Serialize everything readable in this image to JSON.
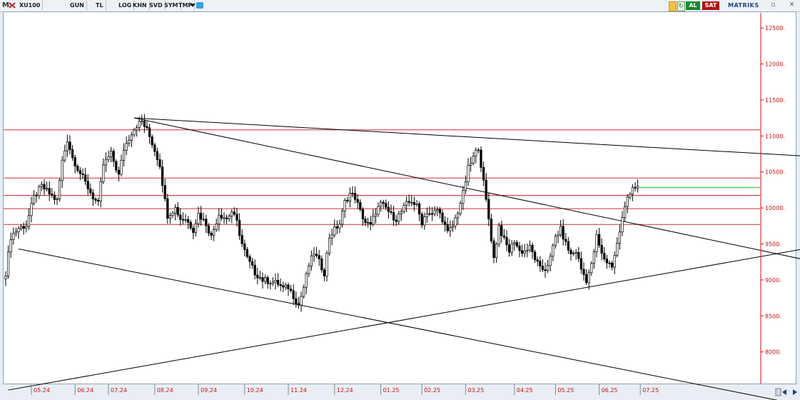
{
  "toolbar": {
    "logo": "M",
    "symbol": "XU100",
    "buttons": [
      "GUN",
      "TL",
      "LOG",
      "KHN",
      "SVD",
      "SYM",
      "TMP"
    ],
    "buy_label": "AL",
    "sell_label": "SAT",
    "brand": "MATRIKS",
    "icons": [
      "close-cross-icon",
      "dropdown-icon",
      "twitter-icon",
      "lightning-icon",
      "refresh-icon",
      "minimize-icon",
      "close-icon"
    ]
  },
  "colors": {
    "candle": "#000000",
    "price_axis": "#cc1010",
    "horizontal_level": "#d03030",
    "last_price_line": "#22bb22",
    "trendline": "#000000",
    "buy": "#168a2c",
    "sell": "#b31212"
  },
  "chart_data": {
    "type": "candlestick",
    "instrument": "XU100",
    "period": "GUN",
    "currency": "TL",
    "y_ticks": [
      8000,
      8500,
      9000,
      9500,
      10000,
      10500,
      11000,
      11500,
      12000,
      12500
    ],
    "y_tick_labels": [
      "8000.",
      "8500.",
      "9000.",
      "9500.",
      "10000.",
      "10500.",
      "11000.",
      "11500.",
      "12000.",
      "12500."
    ],
    "ylim": [
      7560,
      12710
    ],
    "x_ticks": [
      "05.24",
      "06.24",
      "07.24",
      "08.24",
      "09.24",
      "10.24",
      "11.24",
      "12.24",
      "01.25",
      "02.25",
      "03.25",
      "04.25",
      "05.25",
      "06.25",
      "07.25"
    ],
    "x_tick_index": [
      10,
      27,
      40,
      58,
      75,
      93,
      110,
      128,
      146,
      162,
      179,
      198,
      214,
      231,
      247
    ],
    "close_path": [
      [
        0,
        9100
      ],
      [
        2,
        9600
      ],
      [
        5,
        9720
      ],
      [
        8,
        9760
      ],
      [
        11,
        10150
      ],
      [
        14,
        10300
      ],
      [
        17,
        10200
      ],
      [
        20,
        10100
      ],
      [
        22,
        10650
      ],
      [
        24,
        10950
      ],
      [
        26,
        10700
      ],
      [
        28,
        10550
      ],
      [
        31,
        10350
      ],
      [
        34,
        10150
      ],
      [
        36,
        10050
      ],
      [
        38,
        10600
      ],
      [
        41,
        10750
      ],
      [
        44,
        10450
      ],
      [
        46,
        10820
      ],
      [
        49,
        11050
      ],
      [
        51,
        11150
      ],
      [
        53,
        11200
      ],
      [
        55,
        11080
      ],
      [
        57,
        10900
      ],
      [
        60,
        10600
      ],
      [
        62,
        10100
      ],
      [
        63,
        9900
      ],
      [
        66,
        10000
      ],
      [
        68,
        9850
      ],
      [
        70,
        9850
      ],
      [
        73,
        9700
      ],
      [
        75,
        9920
      ],
      [
        78,
        9780
      ],
      [
        80,
        9600
      ],
      [
        83,
        9920
      ],
      [
        86,
        9850
      ],
      [
        88,
        9950
      ],
      [
        90,
        9800
      ],
      [
        92,
        9500
      ],
      [
        94,
        9300
      ],
      [
        97,
        9100
      ],
      [
        100,
        9000
      ],
      [
        103,
        8980
      ],
      [
        106,
        8950
      ],
      [
        108,
        8880
      ],
      [
        110,
        8900
      ],
      [
        112,
        8780
      ],
      [
        114,
        8650
      ],
      [
        116,
        8900
      ],
      [
        118,
        9200
      ],
      [
        120,
        9380
      ],
      [
        122,
        9250
      ],
      [
        124,
        9100
      ],
      [
        126,
        9600
      ],
      [
        128,
        9700
      ],
      [
        130,
        9780
      ],
      [
        132,
        10080
      ],
      [
        134,
        10200
      ],
      [
        136,
        10150
      ],
      [
        138,
        9950
      ],
      [
        140,
        9800
      ],
      [
        142,
        9750
      ],
      [
        144,
        9950
      ],
      [
        146,
        10050
      ],
      [
        148,
        10000
      ],
      [
        150,
        9900
      ],
      [
        152,
        9850
      ],
      [
        154,
        9950
      ],
      [
        156,
        10050
      ],
      [
        158,
        10100
      ],
      [
        160,
        10020
      ],
      [
        162,
        9800
      ],
      [
        164,
        9950
      ],
      [
        166,
        9900
      ],
      [
        168,
        9980
      ],
      [
        170,
        9850
      ],
      [
        172,
        9650
      ],
      [
        174,
        9750
      ],
      [
        176,
        9950
      ],
      [
        178,
        10200
      ],
      [
        180,
        10550
      ],
      [
        182,
        10700
      ],
      [
        184,
        10850
      ],
      [
        186,
        10350
      ],
      [
        188,
        9850
      ],
      [
        190,
        9300
      ],
      [
        192,
        9750
      ],
      [
        194,
        9550
      ],
      [
        196,
        9400
      ],
      [
        198,
        9550
      ],
      [
        200,
        9400
      ],
      [
        202,
        9400
      ],
      [
        204,
        9450
      ],
      [
        206,
        9300
      ],
      [
        208,
        9150
      ],
      [
        210,
        9150
      ],
      [
        212,
        9300
      ],
      [
        214,
        9600
      ],
      [
        216,
        9700
      ],
      [
        218,
        9500
      ],
      [
        220,
        9350
      ],
      [
        222,
        9400
      ],
      [
        224,
        9150
      ],
      [
        226,
        9000
      ],
      [
        228,
        9200
      ],
      [
        230,
        9600
      ],
      [
        232,
        9350
      ],
      [
        234,
        9250
      ],
      [
        236,
        9200
      ],
      [
        238,
        9500
      ],
      [
        240,
        9850
      ],
      [
        242,
        10150
      ],
      [
        244,
        10300
      ],
      [
        246,
        10280
      ]
    ],
    "horizontal_levels": [
      11085,
      10415,
      10175,
      9990,
      9770
    ],
    "last_price": 10285,
    "trendlines": [
      {
        "from": [
          50,
          11250
        ],
        "to": [
          331,
          10680
        ]
      },
      {
        "from": [
          50,
          11250
        ],
        "to": [
          331,
          9130
        ]
      },
      {
        "from": [
          5,
          9430
        ],
        "to": [
          331,
          7110
        ]
      },
      {
        "from": [
          1,
          7470
        ],
        "to": [
          331,
          9560
        ]
      }
    ],
    "grid": false,
    "legend": "none"
  }
}
